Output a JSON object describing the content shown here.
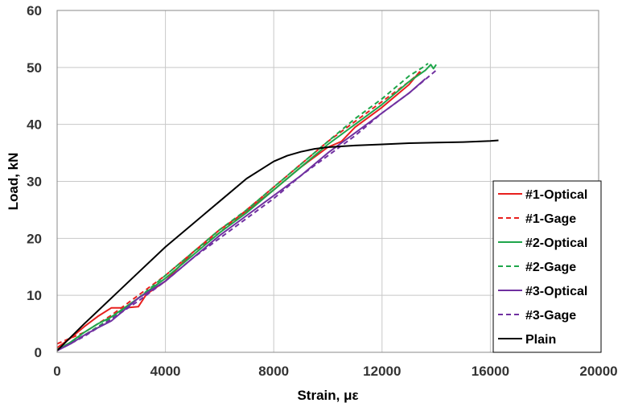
{
  "chart_data": {
    "type": "line",
    "title": "",
    "xlabel": "Strain, με",
    "ylabel": "Load, kN",
    "xlim": [
      0,
      20000
    ],
    "ylim": [
      0,
      60
    ],
    "xticks": [
      0,
      4000,
      8000,
      12000,
      16000,
      20000
    ],
    "yticks": [
      0,
      10,
      20,
      30,
      40,
      50,
      60
    ],
    "xtick_labels": [
      "0",
      "4000",
      "8000",
      "12000",
      "16000",
      "20000"
    ],
    "ytick_labels": [
      "0",
      "10",
      "20",
      "30",
      "40",
      "50",
      "60"
    ],
    "grid": true,
    "legend_position": "right",
    "series": [
      {
        "name": "#1-Optical",
        "color": "#e8201e",
        "dash": "solid",
        "x": [
          0,
          500,
          1000,
          1500,
          2000,
          2500,
          3000,
          3300,
          4000,
          5000,
          6000,
          7000,
          8000,
          9000,
          10000,
          10500,
          11000,
          12000,
          13000,
          13400
        ],
        "y": [
          0.8,
          2.5,
          4.5,
          6.3,
          7.8,
          7.8,
          8.0,
          10.2,
          12.5,
          17.5,
          21.5,
          24.8,
          28.5,
          32.5,
          36.0,
          37.0,
          39.5,
          43.0,
          47.0,
          49.3
        ]
      },
      {
        "name": "#1-Gage",
        "color": "#e8201e",
        "dash": "dashed",
        "x": [
          0,
          1000,
          2000,
          3000,
          4000,
          5000,
          6000,
          7000,
          8000,
          9000,
          10000,
          11000,
          12000,
          13000,
          13500
        ],
        "y": [
          1.5,
          3.5,
          6.5,
          10.0,
          13.5,
          17.5,
          21.0,
          25.0,
          29.0,
          33.0,
          37.0,
          40.5,
          44.0,
          47.5,
          49.5
        ]
      },
      {
        "name": "#2-Optical",
        "color": "#1ea64a",
        "dash": "solid",
        "x": [
          0,
          500,
          1000,
          1500,
          2000,
          3000,
          4000,
          5000,
          6000,
          7000,
          8000,
          9000,
          10000,
          11000,
          12000,
          13000,
          13600,
          13800,
          13900,
          14000
        ],
        "y": [
          0.3,
          1.8,
          3.5,
          5.0,
          6.2,
          9.5,
          13.0,
          17.0,
          21.0,
          24.5,
          28.5,
          32.5,
          36.5,
          40.0,
          43.5,
          47.5,
          49.5,
          50.5,
          49.8,
          50.5
        ]
      },
      {
        "name": "#2-Gage",
        "color": "#1ea64a",
        "dash": "dashed",
        "x": [
          0,
          1000,
          2000,
          3000,
          4000,
          5000,
          6000,
          7000,
          8000,
          9000,
          10000,
          11000,
          12000,
          13000,
          13500,
          13700
        ],
        "y": [
          0.5,
          3.0,
          6.0,
          9.5,
          13.5,
          17.5,
          21.5,
          25.0,
          29.0,
          33.0,
          37.0,
          41.0,
          44.5,
          48.5,
          50.0,
          50.7
        ]
      },
      {
        "name": "#3-Optical",
        "color": "#7030a0",
        "dash": "solid",
        "x": [
          0,
          500,
          1000,
          1500,
          2000,
          2500,
          3000,
          4000,
          5000,
          6000,
          7000,
          8000,
          9000,
          10000,
          11000,
          12000,
          13000,
          13600
        ],
        "y": [
          0.3,
          1.5,
          3.0,
          4.3,
          5.5,
          7.5,
          9.5,
          12.5,
          16.5,
          20.5,
          24.0,
          27.5,
          31.0,
          35.0,
          38.5,
          42.0,
          45.5,
          48.0
        ]
      },
      {
        "name": "#3-Gage",
        "color": "#7030a0",
        "dash": "dashed",
        "x": [
          0,
          1000,
          2000,
          3000,
          4000,
          5000,
          6000,
          7000,
          8000,
          9000,
          10000,
          11000,
          12000,
          13000,
          14000
        ],
        "y": [
          0.3,
          2.8,
          5.8,
          9.0,
          12.5,
          16.5,
          20.0,
          23.5,
          27.0,
          31.0,
          34.5,
          38.0,
          42.0,
          45.5,
          49.5
        ]
      },
      {
        "name": "Plain",
        "color": "#000000",
        "dash": "solid",
        "x": [
          0,
          1000,
          2000,
          3000,
          4000,
          5000,
          6000,
          7000,
          7500,
          8000,
          8500,
          9000,
          9500,
          10000,
          11000,
          12000,
          13000,
          14000,
          15000,
          16000,
          16300
        ],
        "y": [
          0.3,
          5.0,
          9.5,
          14.0,
          18.5,
          22.5,
          26.5,
          30.5,
          32.0,
          33.5,
          34.5,
          35.2,
          35.7,
          36.0,
          36.3,
          36.5,
          36.7,
          36.8,
          36.9,
          37.1,
          37.2
        ]
      }
    ]
  }
}
